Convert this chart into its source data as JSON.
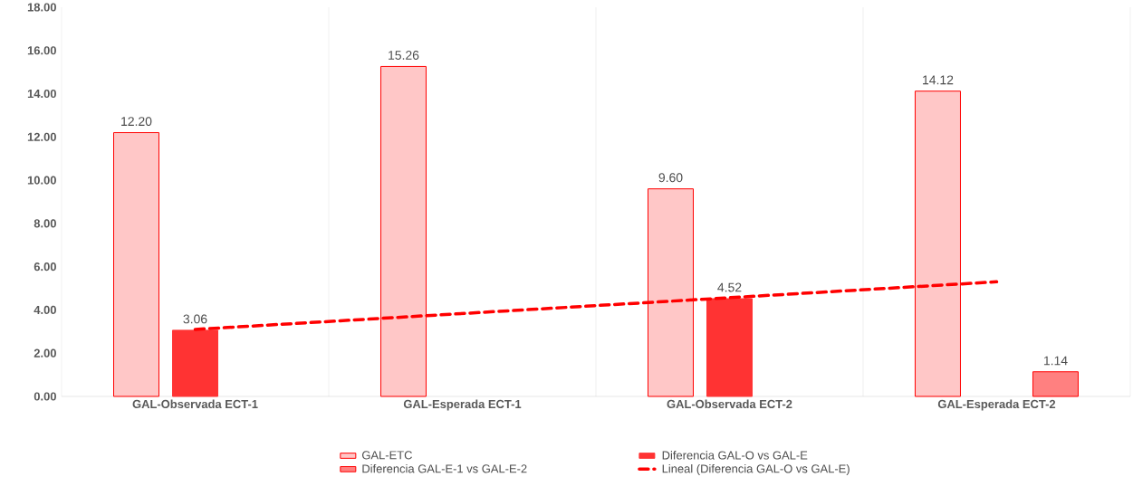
{
  "chart_data": {
    "type": "bar",
    "categories": [
      "GAL-Observada ECT-1",
      "GAL-Esperada ECT-1",
      "GAL-Observada ECT-2",
      "GAL-Esperada ECT-2"
    ],
    "series": [
      {
        "name": "GAL-ETC",
        "color": "#ff0000",
        "values": [
          12.2,
          15.26,
          9.6,
          14.12
        ],
        "value_labels": [
          "12.20",
          "15.26",
          "9.60",
          "14.12"
        ]
      },
      {
        "name": "Diferencia GAL-O vs GAL-E",
        "color": "#ff3333",
        "values": [
          3.06,
          null,
          4.52,
          null
        ],
        "value_labels": [
          "3.06",
          null,
          "4.52",
          null
        ]
      },
      {
        "name": "Diferencia GAL-E-1 vs GAL-E-2",
        "color": "#ff0000",
        "values": [
          null,
          null,
          null,
          1.14
        ],
        "value_labels": [
          null,
          null,
          null,
          "1.14"
        ]
      },
      {
        "name": "Lineal (Diferencia GAL-O vs GAL-E)",
        "type": "line",
        "color": "#ff0000",
        "line_style": "dashed",
        "x": [
          "GAL-Observada ECT-1",
          "GAL-Esperada ECT-2"
        ],
        "values": [
          3.1,
          5.3
        ]
      }
    ],
    "ylim": [
      0,
      18
    ],
    "yticks": [
      {
        "value": 0,
        "label": "0.00"
      },
      {
        "value": 2,
        "label": "2.00"
      },
      {
        "value": 4,
        "label": "4.00"
      },
      {
        "value": 6,
        "label": "6.00"
      },
      {
        "value": 8,
        "label": "8.00"
      },
      {
        "value": 10,
        "label": "10.00"
      },
      {
        "value": 12,
        "label": "12.00"
      },
      {
        "value": 14,
        "label": "14.00"
      },
      {
        "value": 16,
        "label": "16.00"
      },
      {
        "value": 18,
        "label": "18.00"
      }
    ],
    "grid": "x",
    "legend": "bottom",
    "marker": "none"
  }
}
